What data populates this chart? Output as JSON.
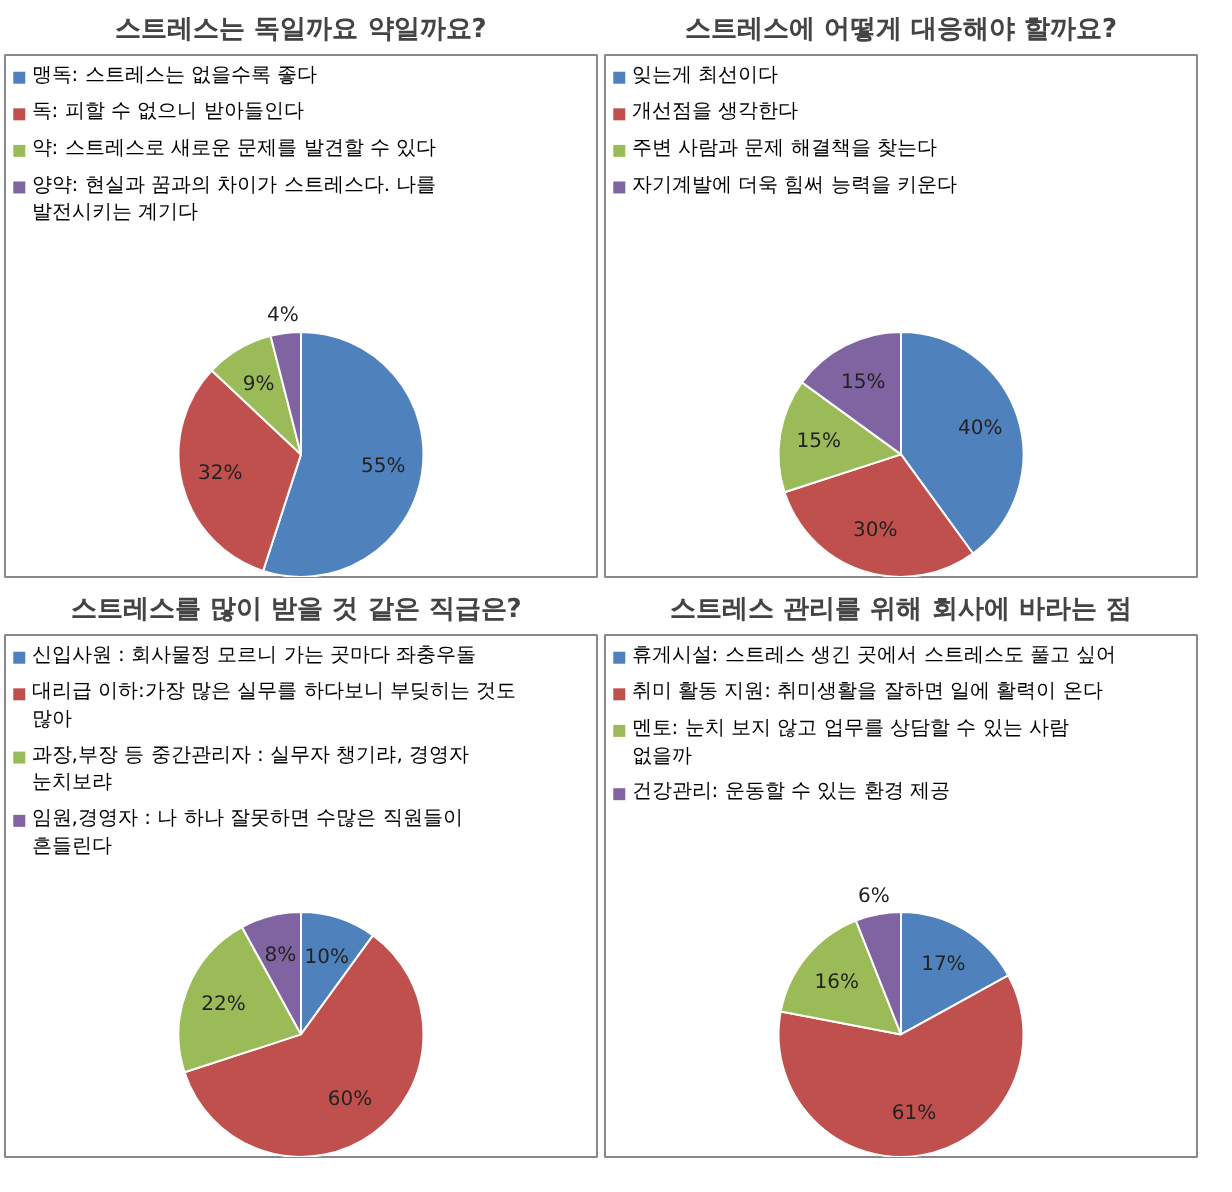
{
  "chart_data": [
    {
      "type": "pie",
      "title": "스트레스는 독일까요 약일까요?",
      "categories": [
        "맹독: 스트레스는 없을수록 좋다",
        "독: 피할 수 없으니 받아들인다",
        "약: 스트레스로 새로운 문제를 발견할 수 있다",
        "양약: 현실과 꿈과의 차이가 스트레스다. 나를 발전시키는 계기다"
      ],
      "values": [
        55,
        32,
        9,
        4
      ],
      "colors": [
        "#4f81bd",
        "#c0504d",
        "#9bbb59",
        "#8064a2"
      ],
      "value_labels": [
        "55%",
        "32%",
        "9%",
        "4%"
      ],
      "legend": "top"
    },
    {
      "type": "pie",
      "title": "스트레스에 어떻게 대응해야 할까요?",
      "categories": [
        "잊는게 최선이다",
        "개선점을 생각한다",
        "주변 사람과 문제 해결책을 찾는다",
        "자기계발에 더욱 힘써 능력을 키운다"
      ],
      "values": [
        40,
        30,
        15,
        15
      ],
      "colors": [
        "#4f81bd",
        "#c0504d",
        "#9bbb59",
        "#8064a2"
      ],
      "value_labels": [
        "40%",
        "30%",
        "15%",
        "15%"
      ],
      "legend": "top"
    },
    {
      "type": "pie",
      "title": "스트레스를  많이 받을 것 같은 직급은?",
      "categories": [
        "신입사원 : 회사물정 모르니 가는 곳마다 좌충우돌",
        "대리급 이하:가장 많은 실무를 하다보니 부딪히는 것도 많아",
        "과장,부장 등 중간관리자 : 실무자 챙기랴, 경영자 눈치보랴",
        "임원,경영자 : 나 하나 잘못하면 수많은 직원들이 흔들린다"
      ],
      "values": [
        10,
        60,
        22,
        8
      ],
      "colors": [
        "#4f81bd",
        "#c0504d",
        "#9bbb59",
        "#8064a2"
      ],
      "value_labels": [
        "10%",
        "60%",
        "22%",
        "8%"
      ],
      "legend": "top"
    },
    {
      "type": "pie",
      "title": "스트레스 관리를 위해 회사에 바라는 점",
      "categories": [
        "휴게시설: 스트레스 생긴 곳에서 스트레스도 풀고 싶어",
        "취미 활동 지원: 취미생활을 잘하면 일에 활력이 온다",
        "멘토: 눈치 보지 않고 업무를 상담할 수 있는 사람 없을까",
        "건강관리: 운동할 수 있는 환경 제공"
      ],
      "values": [
        17,
        61,
        16,
        6
      ],
      "colors": [
        "#4f81bd",
        "#c0504d",
        "#9bbb59",
        "#8064a2"
      ],
      "value_labels": [
        "17%",
        "61%",
        "16%",
        "6%"
      ],
      "legend": "top"
    }
  ]
}
